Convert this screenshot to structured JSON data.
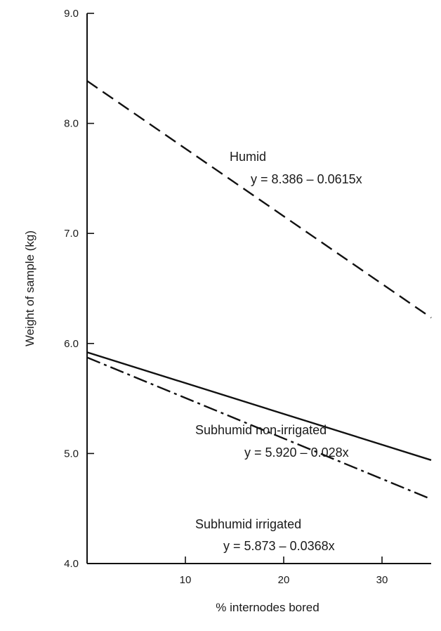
{
  "chart_data": {
    "type": "line",
    "xlabel": "% internodes bored",
    "ylabel": "Weight of sample (kg)",
    "xlim": [
      0,
      35
    ],
    "ylim": [
      4.0,
      9.0
    ],
    "x_ticks": [
      10,
      20,
      30
    ],
    "x_tick_labels": [
      "10",
      "20",
      "30"
    ],
    "y_ticks": [
      4.0,
      5.0,
      6.0,
      7.0,
      8.0,
      9.0
    ],
    "y_tick_labels": [
      "4.0",
      "5.0",
      "6.0",
      "7.0",
      "8.0",
      "9.0"
    ],
    "grid": false,
    "series": [
      {
        "name": "Humid",
        "equation": "y = 8.386 – 0.0615x",
        "intercept": 8.386,
        "slope": -0.0615,
        "x": [
          0,
          35
        ],
        "values": [
          8.386,
          6.234
        ],
        "line_style": "dashed"
      },
      {
        "name": "Subhumid non-irrigated",
        "equation": "y = 5.920 – 0.028x",
        "intercept": 5.92,
        "slope": -0.028,
        "x": [
          0,
          35
        ],
        "values": [
          5.92,
          4.94
        ],
        "line_style": "solid"
      },
      {
        "name": "Subhumid irrigated",
        "equation": "y = 5.873 – 0.0368x",
        "intercept": 5.873,
        "slope": -0.0368,
        "x": [
          0,
          35
        ],
        "values": [
          5.873,
          4.585
        ],
        "line_style": "dash-dot"
      }
    ]
  }
}
